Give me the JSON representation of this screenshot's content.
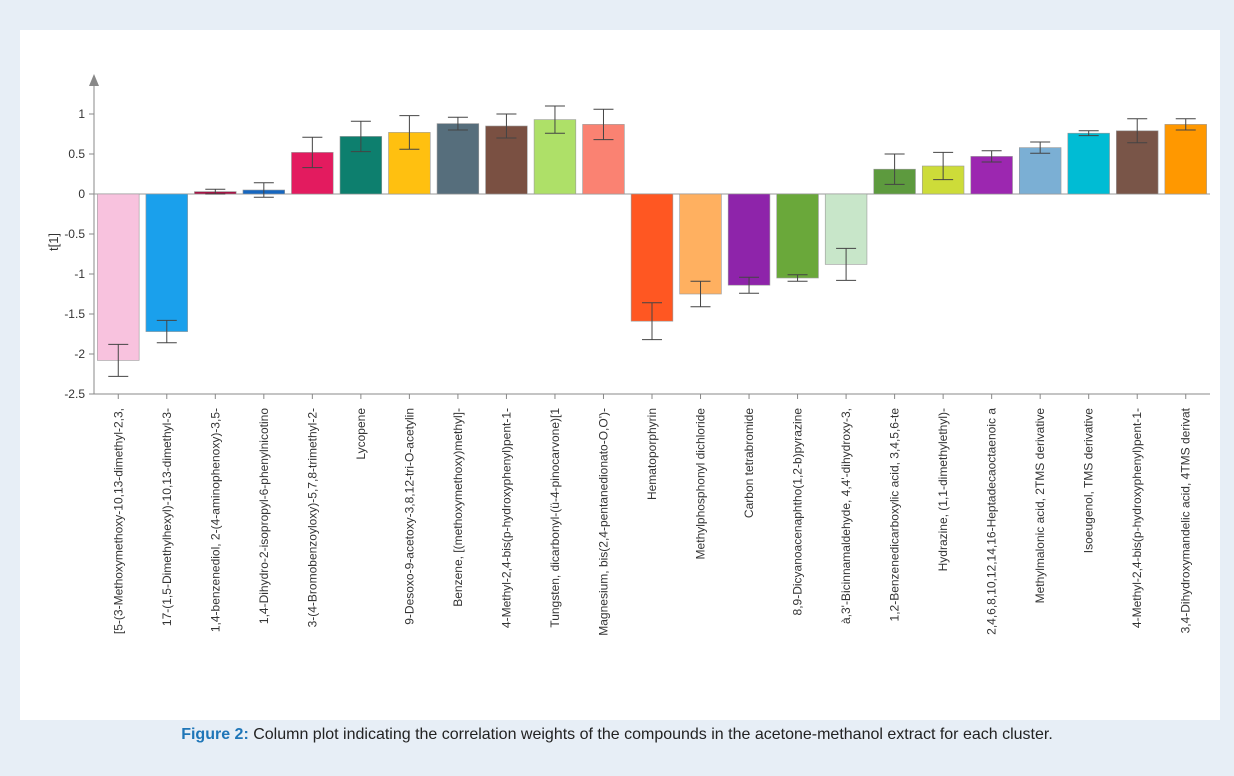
{
  "chart_data": {
    "type": "bar",
    "ylabel": "t[1]",
    "ylim": [
      -2.5,
      1.3
    ],
    "yticks": [
      1,
      0.5,
      0,
      -0.5,
      -1,
      -1.5,
      -2,
      -2.5
    ],
    "ytick_labels": [
      "1",
      "0.5",
      "0",
      "-0.5",
      "-1",
      "-1.5",
      "-2",
      "-2.5"
    ],
    "categories": [
      "[5-(3-Methoxymethoxy-10,13-dimethyl-2,3,",
      "17-(1,5-Dimethylhexyl)-10,13-dimethyl-3-",
      "1,4-benzenediol, 2-(4-aminophenoxy)-3,5-",
      "1,4-Dihydro-2-isopropyl-6-phenylnicotino",
      "3-(4-Bromobenzoyloxy)-5,7,8-trimethyl-2-",
      "Lycopene",
      "9-Desoxo-9-acetoxy-3,8,12-tri-O-acetylin",
      "Benzene, [(methoxymethoxy)methyl]-",
      "4-Methyl-2,4-bis(p-hydroxyphenyl)pent-1-",
      "Tungsten, dicarbonyl-(ü-4-pinocarvone)[1",
      "Magnesium, bis(2,4-pentanedionato-O,O')-",
      "Hematoporphyrin",
      "Methylphosphonyl dichloride",
      "Carbon tetrabromide",
      "8,9-Dicyanoacenaphtho(1,2-b)pyrazine",
      "à,3'-Bicinnamaldehyde, 4,4'-dihydroxy-3,",
      "1,2-Benzenedicarboxylic acid, 3,4,5,6-te",
      "Hydrazine, (1,1-dimethylethyl)-",
      "2,4,6,8,10,12,14,16-Heptadecaoctaenoic a",
      "Methylmalonic acid, 2TMS derivative",
      "Isoeugenol, TMS derivative",
      "4-Methyl-2,4-bis(p-hydroxyphenyl)pent-1-",
      "3,4-Dihydroxymandelic acid, 4TMS derivat"
    ],
    "values": [
      -2.08,
      -1.72,
      0.03,
      0.05,
      0.52,
      0.72,
      0.77,
      0.88,
      0.85,
      0.93,
      0.87,
      -1.59,
      -1.25,
      -1.14,
      -1.05,
      -0.88,
      0.31,
      0.35,
      0.47,
      0.58,
      0.76,
      0.79,
      0.87
    ],
    "errors": [
      0.2,
      0.14,
      0.03,
      0.09,
      0.19,
      0.19,
      0.21,
      0.08,
      0.15,
      0.17,
      0.19,
      0.23,
      0.16,
      0.1,
      0.04,
      0.2,
      0.19,
      0.17,
      0.07,
      0.07,
      0.03,
      0.15,
      0.07
    ],
    "colors": [
      "#f8c2de",
      "#1aa0ec",
      "#a31545",
      "#1666bf",
      "#e31b5f",
      "#0d7f6e",
      "#ffc010",
      "#566e7c",
      "#7a5042",
      "#aee068",
      "#fa8272",
      "#ff5722",
      "#ffb060",
      "#8e24aa",
      "#6aa83a",
      "#c8e6c9",
      "#5d9a3e",
      "#cddc39",
      "#9c27b0",
      "#7bafd4",
      "#00bcd4",
      "#795548",
      "#ff9800"
    ],
    "grid": false,
    "legend": "none"
  },
  "caption": {
    "label": "Figure 2:",
    "text": " Column plot indicating the correlation weights of the compounds in the acetone-methanol extract for each cluster."
  }
}
